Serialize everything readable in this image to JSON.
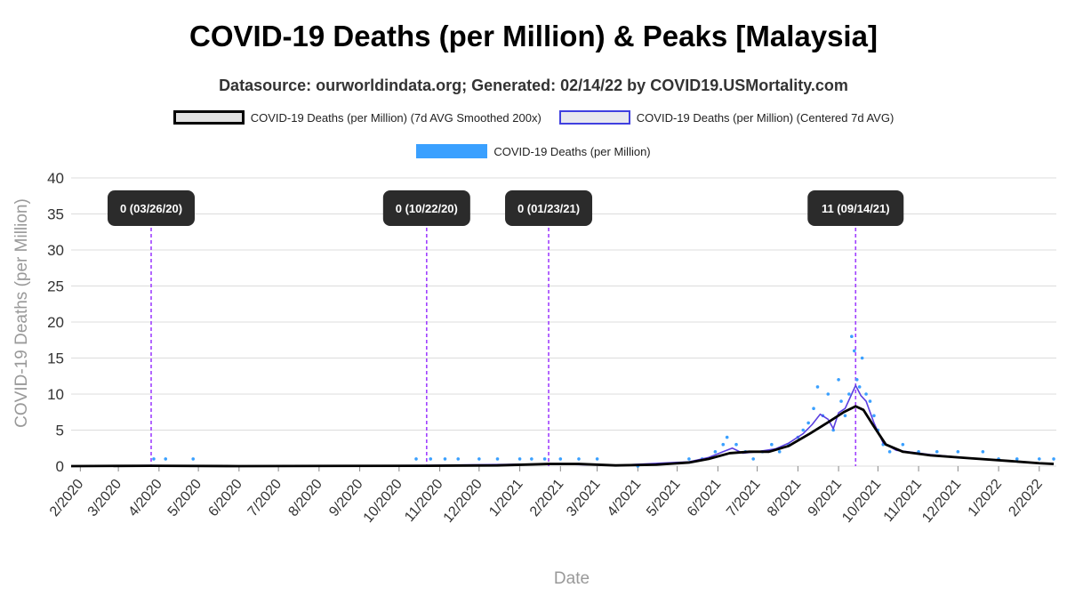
{
  "title": "COVID-19 Deaths (per Million) & Peaks [Malaysia]",
  "subtitle": "Datasource: ourworldindata.org; Generated: 02/14/22 by COVID19.USMortality.com",
  "colors": {
    "smooth": "#000000",
    "avg": "#5a3fe0",
    "daily": "#3aa0ff",
    "peak_line": "#a040ff",
    "annotation_bg": "#2b2b2b"
  },
  "chart_data": {
    "type": "line",
    "title": "COVID-19 Deaths (per Million) & Peaks [Malaysia]",
    "xlabel": "Date",
    "ylabel": "COVID-19 Deaths (per Million)",
    "ylim": [
      0,
      40
    ],
    "yticks": [
      0,
      5,
      10,
      15,
      20,
      25,
      30,
      35,
      40
    ],
    "xticks": [
      "2/2020",
      "3/2020",
      "4/2020",
      "5/2020",
      "6/2020",
      "7/2020",
      "8/2020",
      "9/2020",
      "10/2020",
      "11/2020",
      "12/2020",
      "1/2021",
      "2/2021",
      "3/2021",
      "4/2021",
      "5/2021",
      "6/2021",
      "7/2021",
      "8/2021",
      "9/2021",
      "10/2021",
      "11/2021",
      "12/2021",
      "1/2022",
      "2/2022"
    ],
    "grid": true,
    "legend": "top-center",
    "series": [
      {
        "name": "COVID-19 Deaths (per Million) (7d AVG Smoothed 200x)",
        "style": "smooth",
        "points": [
          [
            "2020-01-25",
            0
          ],
          [
            "2020-03-26",
            0.05
          ],
          [
            "2020-06-01",
            0
          ],
          [
            "2020-10-22",
            0.05
          ],
          [
            "2020-12-15",
            0.1
          ],
          [
            "2021-01-23",
            0.3
          ],
          [
            "2021-02-15",
            0.3
          ],
          [
            "2021-03-15",
            0.1
          ],
          [
            "2021-04-15",
            0.2
          ],
          [
            "2021-05-10",
            0.5
          ],
          [
            "2021-05-25",
            1.0
          ],
          [
            "2021-06-10",
            1.8
          ],
          [
            "2021-06-25",
            2.0
          ],
          [
            "2021-07-10",
            2.0
          ],
          [
            "2021-07-25",
            2.8
          ],
          [
            "2021-08-10",
            4.5
          ],
          [
            "2021-08-25",
            6.2
          ],
          [
            "2021-09-05",
            7.5
          ],
          [
            "2021-09-14",
            8.3
          ],
          [
            "2021-09-20",
            7.8
          ],
          [
            "2021-09-28",
            5.5
          ],
          [
            "2021-10-07",
            3.0
          ],
          [
            "2021-10-20",
            2.0
          ],
          [
            "2021-11-10",
            1.5
          ],
          [
            "2021-12-10",
            1.1
          ],
          [
            "2022-01-10",
            0.7
          ],
          [
            "2022-02-01",
            0.4
          ],
          [
            "2022-02-12",
            0.3
          ]
        ]
      },
      {
        "name": "COVID-19 Deaths (per Million) (Centered 7d AVG)",
        "style": "avg",
        "points": [
          [
            "2020-01-25",
            0
          ],
          [
            "2020-03-26",
            0.1
          ],
          [
            "2020-06-01",
            0
          ],
          [
            "2020-10-22",
            0.1
          ],
          [
            "2021-01-23",
            0.3
          ],
          [
            "2021-03-15",
            0.1
          ],
          [
            "2021-05-10",
            0.6
          ],
          [
            "2021-05-25",
            1.2
          ],
          [
            "2021-06-05",
            2.0
          ],
          [
            "2021-06-12",
            2.5
          ],
          [
            "2021-06-20",
            1.8
          ],
          [
            "2021-07-01",
            2.0
          ],
          [
            "2021-07-15",
            2.4
          ],
          [
            "2021-07-25",
            3.2
          ],
          [
            "2021-08-05",
            4.5
          ],
          [
            "2021-08-12",
            5.8
          ],
          [
            "2021-08-18",
            7.2
          ],
          [
            "2021-08-24",
            6.5
          ],
          [
            "2021-08-28",
            5.2
          ],
          [
            "2021-09-01",
            7.4
          ],
          [
            "2021-09-06",
            8.0
          ],
          [
            "2021-09-10",
            9.6
          ],
          [
            "2021-09-14",
            11.2
          ],
          [
            "2021-09-18",
            9.8
          ],
          [
            "2021-09-22",
            9.0
          ],
          [
            "2021-09-28",
            6.0
          ],
          [
            "2021-10-05",
            3.2
          ],
          [
            "2021-10-15",
            2.2
          ],
          [
            "2021-11-10",
            1.6
          ],
          [
            "2021-12-10",
            1.1
          ],
          [
            "2022-01-10",
            0.7
          ],
          [
            "2022-02-12",
            0.3
          ]
        ]
      },
      {
        "name": "COVID-19 Deaths (per Million)",
        "style": "daily",
        "points": [
          [
            "2020-03-28",
            1
          ],
          [
            "2020-04-06",
            1
          ],
          [
            "2020-04-27",
            1
          ],
          [
            "2020-10-14",
            1
          ],
          [
            "2020-10-25",
            1
          ],
          [
            "2020-11-05",
            1
          ],
          [
            "2020-11-15",
            1
          ],
          [
            "2020-12-01",
            1
          ],
          [
            "2020-12-15",
            1
          ],
          [
            "2021-01-01",
            1
          ],
          [
            "2021-01-10",
            1
          ],
          [
            "2021-01-20",
            1
          ],
          [
            "2021-02-01",
            1
          ],
          [
            "2021-02-15",
            1
          ],
          [
            "2021-03-01",
            1
          ],
          [
            "2021-04-01",
            0
          ],
          [
            "2021-05-10",
            1
          ],
          [
            "2021-05-20",
            1
          ],
          [
            "2021-05-30",
            2
          ],
          [
            "2021-06-05",
            3
          ],
          [
            "2021-06-08",
            4
          ],
          [
            "2021-06-15",
            3
          ],
          [
            "2021-06-22",
            2
          ],
          [
            "2021-06-28",
            1
          ],
          [
            "2021-07-05",
            2
          ],
          [
            "2021-07-12",
            3
          ],
          [
            "2021-07-18",
            2
          ],
          [
            "2021-07-25",
            3
          ],
          [
            "2021-08-01",
            4
          ],
          [
            "2021-08-05",
            5
          ],
          [
            "2021-08-09",
            6
          ],
          [
            "2021-08-13",
            8
          ],
          [
            "2021-08-16",
            11
          ],
          [
            "2021-08-20",
            7
          ],
          [
            "2021-08-24",
            10
          ],
          [
            "2021-08-28",
            5
          ],
          [
            "2021-09-01",
            12
          ],
          [
            "2021-09-03",
            9
          ],
          [
            "2021-09-06",
            7
          ],
          [
            "2021-09-09",
            10
          ],
          [
            "2021-09-11",
            18
          ],
          [
            "2021-09-13",
            16
          ],
          [
            "2021-09-15",
            12
          ],
          [
            "2021-09-17",
            11
          ],
          [
            "2021-09-19",
            15
          ],
          [
            "2021-09-22",
            10
          ],
          [
            "2021-09-25",
            9
          ],
          [
            "2021-09-28",
            7
          ],
          [
            "2021-10-01",
            5
          ],
          [
            "2021-10-05",
            3
          ],
          [
            "2021-10-10",
            2
          ],
          [
            "2021-10-20",
            3
          ],
          [
            "2021-11-01",
            2
          ],
          [
            "2021-11-15",
            2
          ],
          [
            "2021-12-01",
            2
          ],
          [
            "2021-12-20",
            2
          ],
          [
            "2022-01-01",
            1
          ],
          [
            "2022-01-15",
            1
          ],
          [
            "2022-02-01",
            1
          ],
          [
            "2022-02-12",
            1
          ]
        ]
      }
    ],
    "annotations": [
      {
        "date": "2020-03-26",
        "label": "0 (03/26/20)"
      },
      {
        "date": "2020-10-22",
        "label": "0 (10/22/20)"
      },
      {
        "date": "2021-01-23",
        "label": "0 (01/23/21)"
      },
      {
        "date": "2021-09-14",
        "label": "11 (09/14/21)"
      }
    ]
  }
}
